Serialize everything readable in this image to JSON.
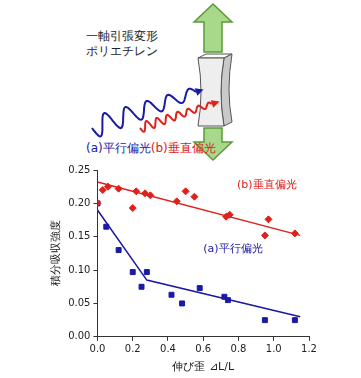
{
  "diagram": {
    "sample_label_lines": [
      "一軸引張変形",
      "ポリエチレン"
    ],
    "beams": [
      {
        "label": "(a)平行偏光",
        "color": "#1a1aa6"
      },
      {
        "label": "(b)垂直偏光",
        "color": "#e0201a"
      }
    ]
  },
  "chart_data": {
    "type": "scatter",
    "x_label": "伸び歪 ⊿L/L",
    "y_label": "積分吸収強度",
    "xlim": [
      0,
      1.2
    ],
    "xticks": [
      {
        "value": 0,
        "label": "0.0"
      },
      {
        "value": 0.2,
        "label": "0.2"
      },
      {
        "value": 0.4,
        "label": "0.4"
      },
      {
        "value": 0.6,
        "label": "0.6"
      },
      {
        "value": 0.8,
        "label": "0.8"
      },
      {
        "value": 1,
        "label": "1.0"
      },
      {
        "value": 1.2,
        "label": "1.2"
      }
    ],
    "ylim": [
      0,
      0.25
    ],
    "yticks": [
      {
        "value": 0,
        "label": "0.00"
      },
      {
        "value": 0.05,
        "label": "0.05"
      },
      {
        "value": 0.1,
        "label": "0.10"
      },
      {
        "value": 0.15,
        "label": "0.15"
      },
      {
        "value": 0.2,
        "label": "0.20"
      },
      {
        "value": 0.25,
        "label": "0.25"
      }
    ],
    "grid": false,
    "series": [
      {
        "name": "(b)垂直偏光",
        "color": "#e0201a",
        "marker": "diamond",
        "x": [
          0,
          0.03,
          0.06,
          0.12,
          0.2,
          0.22,
          0.27,
          0.3,
          0.45,
          0.5,
          0.55,
          0.73,
          0.75,
          0.95,
          0.97,
          1.12
        ],
        "values": [
          0.2,
          0.22,
          0.225,
          0.222,
          0.193,
          0.218,
          0.215,
          0.212,
          0.203,
          0.218,
          0.21,
          0.18,
          0.183,
          0.152,
          0.176,
          0.155
        ],
        "fit": {
          "x": [
            0,
            1.15
          ],
          "values": [
            0.232,
            0.152
          ]
        }
      },
      {
        "name": "(a)平行偏光",
        "color": "#1a1aa6",
        "marker": "square",
        "x": [
          0,
          0.05,
          0.12,
          0.2,
          0.25,
          0.28,
          0.42,
          0.48,
          0.58,
          0.72,
          0.74,
          0.95,
          1.12
        ],
        "values": [
          0.2,
          0.165,
          0.13,
          0.097,
          0.075,
          0.097,
          0.063,
          0.05,
          0.073,
          0.06,
          0.055,
          0.025,
          0.025
        ],
        "fit": {
          "x": [
            0,
            0.28,
            1.15
          ],
          "values": [
            0.19,
            0.085,
            0.03
          ]
        }
      }
    ]
  }
}
